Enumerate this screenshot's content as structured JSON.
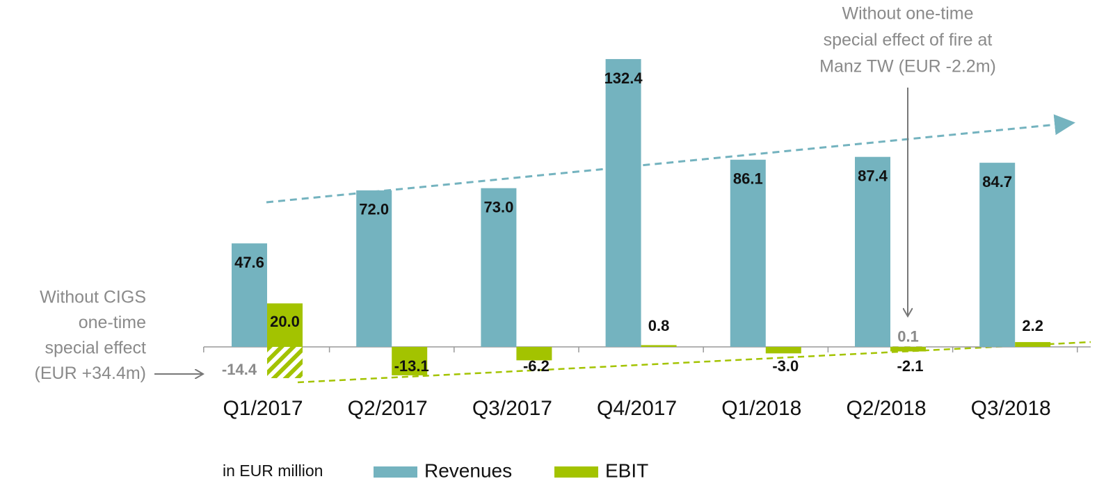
{
  "chart_data": {
    "type": "bar",
    "categories": [
      "Q1/2017",
      "Q2/2017",
      "Q3/2017",
      "Q4/2017",
      "Q1/2018",
      "Q2/2018",
      "Q3/2018"
    ],
    "series": [
      {
        "name": "Revenues",
        "color": "#74b3bf",
        "values": [
          47.6,
          72.0,
          73.0,
          132.4,
          86.1,
          87.4,
          84.7
        ],
        "value_labels": [
          "47.6",
          "72.0",
          "73.0",
          "132.4",
          "86.1",
          "87.4",
          "84.7"
        ]
      },
      {
        "name": "EBIT",
        "color": "#a3c300",
        "values": [
          20.0,
          -13.1,
          -6.2,
          0.8,
          -3.0,
          -2.1,
          2.2
        ],
        "value_labels": [
          "20.0",
          "-13.1",
          "-6.2",
          "0.8",
          "-3.0",
          "-2.1",
          "2.2"
        ]
      }
    ],
    "hatched": {
      "color": "#a3c300",
      "values": [
        -14.4,
        null,
        null,
        null,
        null,
        0.1,
        null
      ],
      "value_labels": [
        "-14.4",
        null,
        null,
        null,
        null,
        "0.1",
        null
      ]
    },
    "ylim": [
      -20,
      140
    ],
    "unit_note": "in EUR million",
    "annotations": [
      {
        "lines": [
          "Without one-time",
          "special effect of fire at",
          "Manz TW (EUR -2.2m)"
        ]
      },
      {
        "lines": [
          "Without CIGS",
          "one-time",
          "special effect",
          "(EUR +34.4m)"
        ]
      }
    ]
  }
}
